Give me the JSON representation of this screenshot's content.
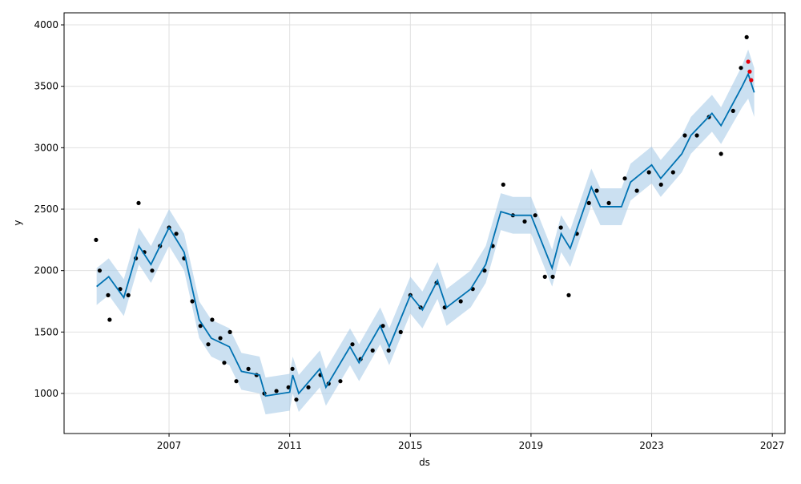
{
  "chart_data": {
    "type": "forecast",
    "x_label": "ds",
    "y_label": "y",
    "xlim": [
      2003.52,
      2027.42
    ],
    "xticks": [
      2007,
      2011,
      2015,
      2019,
      2023,
      2027
    ],
    "ylim": [
      674,
      4098
    ],
    "yticks": [
      1000,
      1500,
      2000,
      2500,
      3000,
      3500,
      4000
    ],
    "grid": true,
    "observed": {
      "color": "#000000",
      "x": [
        2004.58,
        2004.7,
        2004.98,
        2005.03,
        2005.38,
        2005.65,
        2005.9,
        2005.99,
        2006.18,
        2006.44,
        2006.7,
        2007.0,
        2007.24,
        2007.5,
        2007.77,
        2008.04,
        2008.3,
        2008.43,
        2008.7,
        2008.83,
        2009.02,
        2009.23,
        2009.63,
        2009.9,
        2010.16,
        2010.56,
        2010.96,
        2011.09,
        2011.22,
        2011.62,
        2012.02,
        2012.29,
        2012.68,
        2013.08,
        2013.35,
        2013.75,
        2014.09,
        2014.28,
        2014.68,
        2015.0,
        2015.34,
        2015.87,
        2016.14,
        2016.67,
        2017.07,
        2017.46,
        2017.73,
        2018.08,
        2018.4,
        2018.79,
        2019.14,
        2019.46,
        2019.72,
        2019.99,
        2020.25,
        2020.52,
        2020.92,
        2021.18,
        2021.58,
        2022.11,
        2022.51,
        2022.91,
        2023.31,
        2023.71,
        2024.1,
        2024.5,
        2024.9,
        2025.3,
        2025.7,
        2025.96,
        2026.15
      ],
      "values": [
        2250,
        2000,
        1800,
        1600,
        1850,
        1800,
        2100,
        2550,
        2150,
        2000,
        2200,
        2350,
        2300,
        2100,
        1750,
        1550,
        1400,
        1600,
        1450,
        1250,
        1500,
        1100,
        1200,
        1150,
        1000,
        1020,
        1050,
        1200,
        950,
        1050,
        1150,
        1080,
        1100,
        1400,
        1280,
        1350,
        1550,
        1350,
        1500,
        1800,
        1700,
        1900,
        1700,
        1750,
        1850,
        2000,
        2200,
        2700,
        2450,
        2400,
        2450,
        1950,
        1950,
        2350,
        1800,
        2300,
        2550,
        2650,
        2550,
        2750,
        2650,
        2800,
        2700,
        2800,
        3100,
        3100,
        3250,
        2950,
        3300,
        3650,
        3900
      ]
    },
    "test": {
      "color": "#e8000b",
      "x": [
        2026.2,
        2026.25,
        2026.3
      ],
      "values": [
        3700,
        3620,
        3550
      ]
    },
    "forecast": {
      "color": "#0072b2",
      "band_color": "#a8cce8",
      "x": [
        2004.6,
        2005.0,
        2005.5,
        2006.0,
        2006.4,
        2007.0,
        2007.5,
        2008.0,
        2008.4,
        2009.0,
        2009.4,
        2010.0,
        2010.2,
        2011.0,
        2011.1,
        2011.3,
        2012.0,
        2012.2,
        2013.0,
        2013.3,
        2014.0,
        2014.3,
        2015.0,
        2015.4,
        2015.9,
        2016.2,
        2017.0,
        2017.5,
        2018.0,
        2018.4,
        2019.0,
        2019.7,
        2020.0,
        2020.3,
        2021.0,
        2021.3,
        2022.0,
        2022.3,
        2023.0,
        2023.3,
        2024.0,
        2024.3,
        2025.0,
        2025.3,
        2026.0,
        2026.2,
        2026.4
      ],
      "values": [
        1870,
        1950,
        1780,
        2200,
        2050,
        2350,
        2150,
        1600,
        1450,
        1380,
        1180,
        1150,
        980,
        1010,
        1150,
        1000,
        1200,
        1050,
        1380,
        1250,
        1550,
        1380,
        1800,
        1680,
        1920,
        1700,
        1850,
        2050,
        2480,
        2450,
        2450,
        2020,
        2300,
        2180,
        2680,
        2520,
        2520,
        2720,
        2860,
        2750,
        2950,
        3100,
        3280,
        3180,
        3500,
        3600,
        3450
      ],
      "lower": [
        1720,
        1800,
        1630,
        2050,
        1900,
        2200,
        2000,
        1450,
        1300,
        1230,
        1030,
        1000,
        830,
        860,
        1000,
        850,
        1050,
        900,
        1230,
        1100,
        1400,
        1230,
        1650,
        1530,
        1770,
        1550,
        1700,
        1900,
        2330,
        2300,
        2300,
        1870,
        2150,
        2030,
        2530,
        2370,
        2370,
        2570,
        2710,
        2600,
        2800,
        2950,
        3130,
        3030,
        3330,
        3400,
        3250
      ],
      "upper": [
        2020,
        2100,
        1930,
        2350,
        2200,
        2500,
        2300,
        1750,
        1600,
        1530,
        1330,
        1300,
        1130,
        1160,
        1300,
        1150,
        1350,
        1200,
        1530,
        1400,
        1700,
        1530,
        1950,
        1830,
        2070,
        1850,
        2000,
        2200,
        2630,
        2600,
        2600,
        2170,
        2450,
        2330,
        2830,
        2670,
        2670,
        2870,
        3010,
        2900,
        3100,
        3250,
        3430,
        3330,
        3670,
        3800,
        3650
      ]
    }
  }
}
